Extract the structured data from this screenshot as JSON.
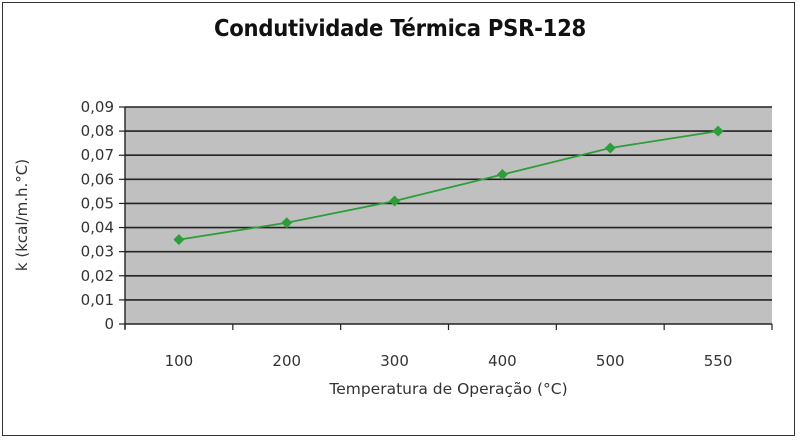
{
  "chart_data": {
    "type": "line",
    "title": "Condutividade Térmica PSR-128",
    "xlabel": "Temperatura de Operação (°C)",
    "ylabel": "k (kcal/m.h.°C)",
    "categories": [
      "100",
      "200",
      "300",
      "400",
      "500",
      "550"
    ],
    "series": [
      {
        "name": "PSR-128",
        "color": "#2e9e3a",
        "marker": "diamond",
        "values": [
          0.035,
          0.042,
          0.051,
          0.062,
          0.073,
          0.08
        ]
      }
    ],
    "ylim": [
      0,
      0.09
    ],
    "yticks": [
      "0,09",
      "0,08",
      "0,07",
      "0,06",
      "0,05",
      "0,04",
      "0,03",
      "0,02",
      "0,01",
      "0"
    ],
    "grid": true,
    "legend": "none",
    "plot_background": "#c0c0c0"
  }
}
